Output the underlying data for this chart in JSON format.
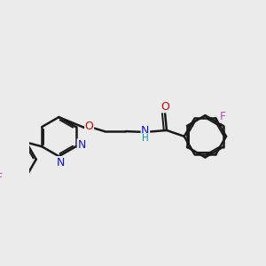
{
  "bg_color": "#ebebeb",
  "bond_color": "#1a1a1a",
  "bond_width": 1.8,
  "dbo": 0.055,
  "fs": 9,
  "fs_small": 7.5,
  "figsize": [
    3.0,
    3.0
  ],
  "dpi": 100,
  "atom_colors": {
    "N": "#1010ee",
    "O": "#cc0000",
    "F": "#cc44bb",
    "H": "#009999",
    "C": "#1a1a1a"
  }
}
